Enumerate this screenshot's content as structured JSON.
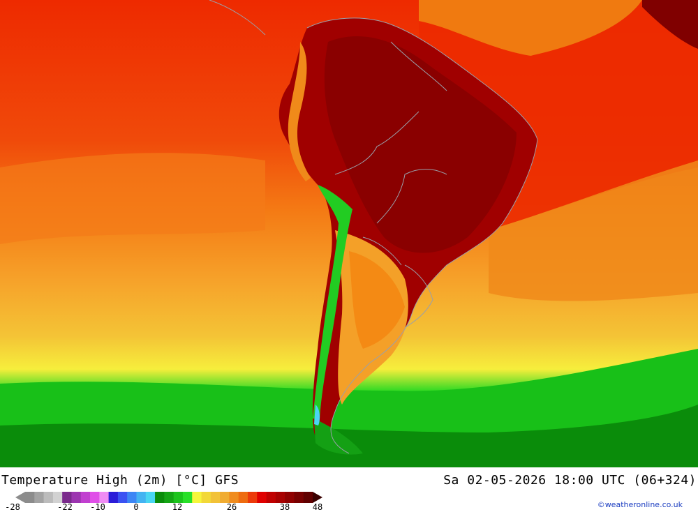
{
  "title": "Temperature High (2m) [°C] GFS",
  "datetime": "Sa 02-05-2026 18:00 UTC (06+324)",
  "credit": "©weatheronline.co.uk",
  "colorscale": {
    "colors": [
      "#8c8c8c",
      "#a3a3a3",
      "#bcbcbc",
      "#d2d2d2",
      "#7a2a8c",
      "#9c35b0",
      "#c13fd0",
      "#e04fe8",
      "#f08cf4",
      "#2b1dd8",
      "#3a52f2",
      "#3c86f5",
      "#43b3f2",
      "#49d6f2",
      "#0a8c0a",
      "#14a514",
      "#1cc41c",
      "#28e028",
      "#f6f63c",
      "#f2d838",
      "#f2c238",
      "#f0ac32",
      "#f08c1e",
      "#ee6c10",
      "#ec3a0a",
      "#e00000",
      "#c00000",
      "#a80000",
      "#900000",
      "#780000",
      "#600000"
    ],
    "labels": [
      "-28",
      "-22",
      "-10",
      "0",
      "12",
      "26",
      "38",
      "48"
    ]
  },
  "map_colors": {
    "ocean_cold": "#0a8c0a",
    "ocean_warm": "#f6f63c",
    "ocean_orange": "#f0ac32",
    "ocean_red": "#ec3a0a",
    "land_hot": "#a00000",
    "border": "#9aa0aa"
  }
}
